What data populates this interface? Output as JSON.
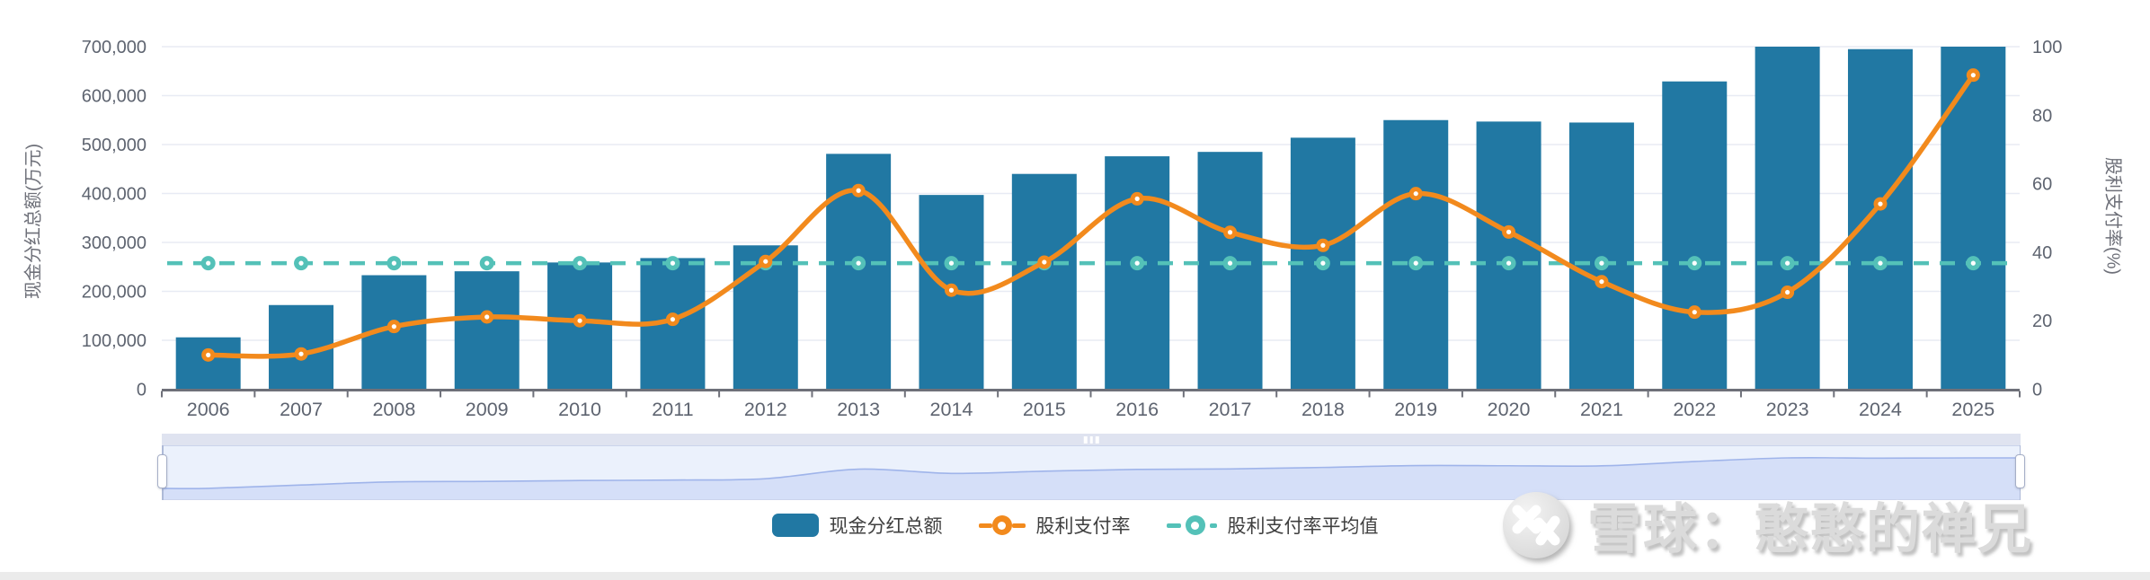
{
  "chart_data": {
    "type": "bar+line",
    "categories": [
      "2006",
      "2007",
      "2008",
      "2009",
      "2010",
      "2011",
      "2012",
      "2013",
      "2014",
      "2015",
      "2016",
      "2017",
      "2018",
      "2019",
      "2020",
      "2021",
      "2022",
      "2023",
      "2024",
      "2025"
    ],
    "series": [
      {
        "name": "现金分红总额",
        "type": "bar",
        "axis": "left",
        "color": "#2178A3",
        "values": [
          106000,
          172000,
          233000,
          241000,
          259000,
          268000,
          294000,
          481000,
          397000,
          440000,
          476000,
          485000,
          514000,
          550000,
          547000,
          545000,
          629000,
          700000,
          695000,
          700000
        ]
      },
      {
        "name": "股利支付率",
        "type": "line",
        "axis": "right",
        "color": "#F28A1D",
        "values": [
          10.0,
          10.3,
          18.3,
          21.1,
          20.0,
          20.4,
          37.3,
          58.0,
          28.9,
          37.1,
          55.6,
          45.8,
          42.0,
          57.1,
          45.9,
          31.4,
          22.5,
          28.3,
          54.1,
          91.7
        ]
      },
      {
        "name": "股利支付率平均值",
        "type": "dashed-line",
        "axis": "right",
        "color": "#54C1B8",
        "value": 36.8
      }
    ],
    "left_axis": {
      "name": "现金分红总额(万元)",
      "min": 0,
      "max": 700000,
      "tick_labels": [
        "0",
        "100,000",
        "200,000",
        "300,000",
        "400,000",
        "500,000",
        "600,000",
        "700,000"
      ]
    },
    "right_axis": {
      "name": "股利支付率(%)",
      "min": 0,
      "max": 100,
      "tick_labels": [
        "0",
        "20",
        "40",
        "60",
        "80",
        "100"
      ]
    },
    "grid": "horizontal-only",
    "legend_position": "bottom-center"
  },
  "legend": {
    "items": [
      {
        "label": "现金分红总额",
        "marker": "bar-swatch",
        "color": "#2178A3"
      },
      {
        "label": "股利支付率",
        "marker": "line-ring",
        "color": "#F28A1D"
      },
      {
        "label": "股利支付率平均值",
        "marker": "dashed-line-ring",
        "color": "#54C1B8"
      }
    ]
  },
  "slider": {
    "type": "datazoom",
    "range_start": "2006",
    "range_end": "2025"
  },
  "watermark": {
    "logo": "xueqiu-logo",
    "text": "雪球：憨憨的禅兄"
  },
  "colors": {
    "bar": "#2178A3",
    "line": "#F28A1D",
    "avg_line": "#54C1B8",
    "gridline": "#E8EBF4",
    "axis_line": "#6E7079",
    "tick_text": "#5E6470",
    "slider_fill": "#EBF1FC",
    "slider_shadow": "#D5DFF8",
    "slider_shadow_line": "#9FB4EA",
    "slider_strip": "#DFE3F0"
  }
}
